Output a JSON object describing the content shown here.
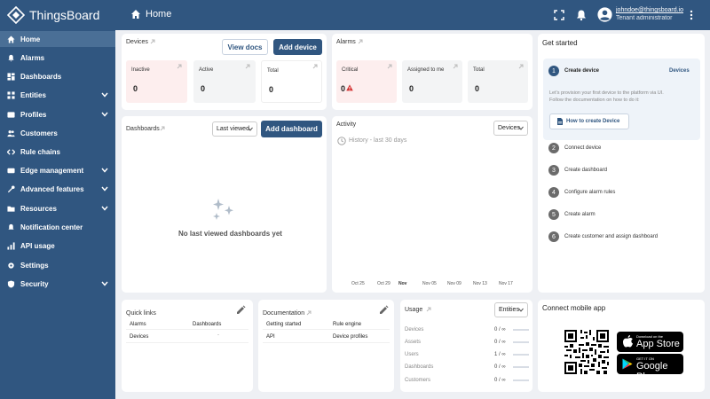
{
  "app": {
    "brand": "ThingsBoard",
    "page_title": "Home"
  },
  "user": {
    "email": "johndoe@thingsboard.io",
    "role": "Tenant administrator"
  },
  "sidebar": {
    "items": [
      {
        "label": "Home",
        "active": true,
        "expandable": false
      },
      {
        "label": "Alarms",
        "active": false,
        "expandable": false
      },
      {
        "label": "Dashboards",
        "active": false,
        "expandable": false
      },
      {
        "label": "Entities",
        "active": false,
        "expandable": true
      },
      {
        "label": "Profiles",
        "active": false,
        "expandable": true
      },
      {
        "label": "Customers",
        "active": false,
        "expandable": false
      },
      {
        "label": "Rule chains",
        "active": false,
        "expandable": false
      },
      {
        "label": "Edge management",
        "active": false,
        "expandable": true
      },
      {
        "label": "Advanced features",
        "active": false,
        "expandable": true
      },
      {
        "label": "Resources",
        "active": false,
        "expandable": true
      },
      {
        "label": "Notification center",
        "active": false,
        "expandable": false
      },
      {
        "label": "API usage",
        "active": false,
        "expandable": false
      },
      {
        "label": "Settings",
        "active": false,
        "expandable": false
      },
      {
        "label": "Security",
        "active": false,
        "expandable": true
      }
    ]
  },
  "devices": {
    "title": "Devices",
    "view_docs": "View docs",
    "add_device": "Add device",
    "stats": [
      {
        "label": "Inactive",
        "value": "0"
      },
      {
        "label": "Active",
        "value": "0"
      },
      {
        "label": "Total",
        "value": "0"
      }
    ]
  },
  "alarms": {
    "title": "Alarms",
    "stats": [
      {
        "label": "Critical",
        "value": "0"
      },
      {
        "label": "Assigned to me",
        "value": "0"
      },
      {
        "label": "Total",
        "value": "0"
      }
    ]
  },
  "dashboards": {
    "title": "Dashboards",
    "filter": "Last viewed",
    "add_dashboard": "Add dashboard",
    "empty": "No last viewed dashboards yet"
  },
  "activity": {
    "title": "Activity",
    "filter": "Devices",
    "history": "History - last 30 days",
    "x_labels": [
      "Oct 25",
      "Oct 29",
      "Nov",
      "Nov 05",
      "Nov 09",
      "Nov 13",
      "Nov 17"
    ]
  },
  "get_started": {
    "title": "Get started",
    "steps": [
      {
        "num": "1",
        "label": "Create device"
      },
      {
        "num": "2",
        "label": "Connect device"
      },
      {
        "num": "3",
        "label": "Create dashboard"
      },
      {
        "num": "4",
        "label": "Configure alarm rules"
      },
      {
        "num": "5",
        "label": "Create alarm"
      },
      {
        "num": "6",
        "label": "Create customer and assign dashboard"
      }
    ],
    "active_step_link": "Devices",
    "description_line1": "Let's provision your first device to the platform via UI.",
    "description_line2": "Follow the documentation on how to do it:",
    "how_to_button": "How to create Device"
  },
  "quick_links": {
    "title": "Quick links",
    "rows": [
      [
        "Alarms",
        "Dashboards"
      ],
      [
        "Devices",
        "-"
      ]
    ]
  },
  "documentation": {
    "title": "Documentation",
    "rows": [
      [
        "Getting started",
        "Rule engine"
      ],
      [
        "API",
        "Device profiles"
      ]
    ]
  },
  "usage": {
    "title": "Usage",
    "filter": "Entities",
    "rows": [
      {
        "label": "Devices",
        "value": "0 / ∞"
      },
      {
        "label": "Assets",
        "value": "0 / ∞"
      },
      {
        "label": "Users",
        "value": "1 / ∞"
      },
      {
        "label": "Dashboards",
        "value": "0 / ∞"
      },
      {
        "label": "Customers",
        "value": "0 / ∞"
      }
    ]
  },
  "mobile": {
    "title": "Connect mobile app",
    "app_store_small": "Download on the",
    "app_store_large": "App Store",
    "google_small": "GET IT ON",
    "google_large": "Google Play"
  },
  "colors": {
    "brand": "#305680",
    "critical_bg": "#fdeeee",
    "stat_bg": "#f3f4f5",
    "critical_icon": "#d32f2f"
  }
}
